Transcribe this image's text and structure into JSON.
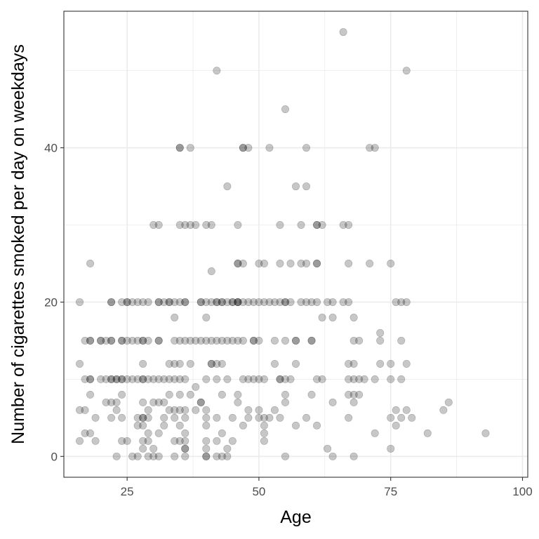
{
  "chart_data": {
    "type": "scatter",
    "title": "",
    "xlabel": "Age",
    "ylabel": "Number of cigarettes smoked per day on weekdays",
    "xlim": [
      13,
      101
    ],
    "ylim": [
      -2.7,
      57.7
    ],
    "x_ticks": [
      25,
      50,
      75,
      100
    ],
    "y_ticks": [
      0,
      20,
      40
    ],
    "x_tick_labels": [
      "25",
      "50",
      "75",
      "100"
    ],
    "y_tick_labels": [
      "0",
      "20",
      "40"
    ],
    "x_minor_gridlines": [
      37.5,
      62.5,
      87.5
    ],
    "y_minor_gridlines": [
      10,
      30,
      50
    ],
    "grid": true,
    "point_color": "#000000",
    "point_opacity": 0.22,
    "panel_border_color": "#333333",
    "grid_color": "#ebebeb",
    "points": [
      [
        66,
        55
      ],
      [
        42,
        50
      ],
      [
        78,
        50
      ],
      [
        55,
        45
      ],
      [
        35,
        40
      ],
      [
        35,
        40
      ],
      [
        37,
        40
      ],
      [
        47,
        40
      ],
      [
        47,
        40
      ],
      [
        48,
        40
      ],
      [
        52,
        40
      ],
      [
        59,
        40
      ],
      [
        71,
        40
      ],
      [
        72,
        40
      ],
      [
        44,
        35
      ],
      [
        57,
        35
      ],
      [
        59,
        35
      ],
      [
        30,
        30
      ],
      [
        31,
        30
      ],
      [
        35,
        30
      ],
      [
        36,
        30
      ],
      [
        37,
        30
      ],
      [
        38,
        30
      ],
      [
        40,
        30
      ],
      [
        41,
        30
      ],
      [
        46,
        30
      ],
      [
        54,
        30
      ],
      [
        58,
        30
      ],
      [
        61,
        30
      ],
      [
        62,
        30
      ],
      [
        61,
        30
      ],
      [
        66,
        30
      ],
      [
        67,
        30
      ],
      [
        18,
        25
      ],
      [
        41,
        24
      ],
      [
        46,
        25
      ],
      [
        46,
        25
      ],
      [
        47,
        25
      ],
      [
        50,
        25
      ],
      [
        51,
        25
      ],
      [
        54,
        25
      ],
      [
        56,
        25
      ],
      [
        58,
        25
      ],
      [
        59,
        25
      ],
      [
        61,
        25
      ],
      [
        61,
        25
      ],
      [
        67,
        25
      ],
      [
        71,
        25
      ],
      [
        75,
        25
      ],
      [
        16,
        20
      ],
      [
        22,
        20
      ],
      [
        22,
        20
      ],
      [
        24,
        20
      ],
      [
        25,
        20
      ],
      [
        25,
        20
      ],
      [
        26,
        20
      ],
      [
        27,
        20
      ],
      [
        28,
        20
      ],
      [
        29,
        20
      ],
      [
        31,
        20
      ],
      [
        31,
        20
      ],
      [
        32,
        20
      ],
      [
        33,
        20
      ],
      [
        33,
        20
      ],
      [
        34,
        20
      ],
      [
        35,
        20
      ],
      [
        36,
        20
      ],
      [
        36,
        20
      ],
      [
        39,
        20
      ],
      [
        39,
        20
      ],
      [
        40,
        20
      ],
      [
        41,
        20
      ],
      [
        42,
        20
      ],
      [
        42,
        20
      ],
      [
        43,
        20
      ],
      [
        43,
        20
      ],
      [
        44,
        20
      ],
      [
        45,
        20
      ],
      [
        45,
        20
      ],
      [
        46,
        20
      ],
      [
        46,
        20
      ],
      [
        46,
        20
      ],
      [
        47,
        20
      ],
      [
        48,
        20
      ],
      [
        49,
        20
      ],
      [
        50,
        20
      ],
      [
        51,
        20
      ],
      [
        52,
        20
      ],
      [
        53,
        20
      ],
      [
        54,
        20
      ],
      [
        55,
        20
      ],
      [
        55,
        20
      ],
      [
        56,
        20
      ],
      [
        58,
        20
      ],
      [
        59,
        20
      ],
      [
        60,
        20
      ],
      [
        61,
        20
      ],
      [
        63,
        20
      ],
      [
        64,
        20
      ],
      [
        66,
        20
      ],
      [
        67,
        20
      ],
      [
        76,
        20
      ],
      [
        77,
        20
      ],
      [
        78,
        20
      ],
      [
        34,
        18
      ],
      [
        40,
        18
      ],
      [
        62,
        18
      ],
      [
        64,
        18
      ],
      [
        68,
        18
      ],
      [
        73,
        16
      ],
      [
        17,
        15
      ],
      [
        18,
        15
      ],
      [
        18,
        15
      ],
      [
        20,
        15
      ],
      [
        20,
        15
      ],
      [
        21,
        15
      ],
      [
        22,
        15
      ],
      [
        22,
        15
      ],
      [
        24,
        15
      ],
      [
        24,
        15
      ],
      [
        25,
        15
      ],
      [
        26,
        15
      ],
      [
        27,
        15
      ],
      [
        28,
        15
      ],
      [
        28,
        15
      ],
      [
        29,
        15
      ],
      [
        31,
        15
      ],
      [
        31,
        15
      ],
      [
        34,
        15
      ],
      [
        35,
        15
      ],
      [
        36,
        15
      ],
      [
        37,
        15
      ],
      [
        38,
        15
      ],
      [
        39,
        15
      ],
      [
        40,
        15
      ],
      [
        41,
        15
      ],
      [
        42,
        15
      ],
      [
        43,
        15
      ],
      [
        44,
        15
      ],
      [
        45,
        15
      ],
      [
        46,
        15
      ],
      [
        47,
        15
      ],
      [
        49,
        15
      ],
      [
        49,
        15
      ],
      [
        50,
        15
      ],
      [
        53,
        15
      ],
      [
        55,
        15
      ],
      [
        57,
        15
      ],
      [
        57,
        15
      ],
      [
        60,
        15
      ],
      [
        60,
        15
      ],
      [
        68,
        15
      ],
      [
        69,
        15
      ],
      [
        73,
        15
      ],
      [
        77,
        15
      ],
      [
        16,
        12
      ],
      [
        28,
        12
      ],
      [
        33,
        12
      ],
      [
        34,
        12
      ],
      [
        35,
        12
      ],
      [
        37,
        12
      ],
      [
        41,
        12
      ],
      [
        41,
        12
      ],
      [
        42,
        12
      ],
      [
        43,
        12
      ],
      [
        53,
        12
      ],
      [
        57,
        12
      ],
      [
        67,
        12
      ],
      [
        68,
        12
      ],
      [
        73,
        12
      ],
      [
        75,
        12
      ],
      [
        78,
        12
      ],
      [
        17,
        10
      ],
      [
        18,
        10
      ],
      [
        18,
        10
      ],
      [
        20,
        10
      ],
      [
        21,
        10
      ],
      [
        22,
        10
      ],
      [
        22,
        10
      ],
      [
        23,
        10
      ],
      [
        23,
        10
      ],
      [
        24,
        10
      ],
      [
        24,
        10
      ],
      [
        25,
        10
      ],
      [
        26,
        10
      ],
      [
        27,
        10
      ],
      [
        28,
        10
      ],
      [
        28,
        10
      ],
      [
        29,
        10
      ],
      [
        30,
        10
      ],
      [
        31,
        10
      ],
      [
        32,
        10
      ],
      [
        33,
        10
      ],
      [
        34,
        10
      ],
      [
        35,
        10
      ],
      [
        36,
        10
      ],
      [
        40,
        10
      ],
      [
        42,
        10
      ],
      [
        44,
        10
      ],
      [
        47,
        10
      ],
      [
        48,
        10
      ],
      [
        49,
        10
      ],
      [
        50,
        10
      ],
      [
        51,
        10
      ],
      [
        54,
        10
      ],
      [
        54,
        10
      ],
      [
        55,
        10
      ],
      [
        56,
        10
      ],
      [
        61,
        10
      ],
      [
        62,
        10
      ],
      [
        67,
        10
      ],
      [
        68,
        10
      ],
      [
        69,
        10
      ],
      [
        70,
        10
      ],
      [
        72,
        10
      ],
      [
        75,
        10
      ],
      [
        77,
        10
      ],
      [
        38,
        9
      ],
      [
        18,
        8
      ],
      [
        24,
        8
      ],
      [
        33,
        8
      ],
      [
        35,
        8
      ],
      [
        37,
        8
      ],
      [
        43,
        8
      ],
      [
        46,
        8
      ],
      [
        55,
        8
      ],
      [
        60,
        8
      ],
      [
        67,
        8
      ],
      [
        68,
        8
      ],
      [
        69,
        8
      ],
      [
        21,
        7
      ],
      [
        22,
        7
      ],
      [
        23,
        7
      ],
      [
        28,
        7
      ],
      [
        30,
        7
      ],
      [
        31,
        7
      ],
      [
        32,
        7
      ],
      [
        39,
        7
      ],
      [
        39,
        7
      ],
      [
        46,
        7
      ],
      [
        55,
        7
      ],
      [
        64,
        7
      ],
      [
        68,
        7
      ],
      [
        86,
        7
      ],
      [
        16,
        6
      ],
      [
        17,
        6
      ],
      [
        23,
        6
      ],
      [
        29,
        6
      ],
      [
        33,
        6
      ],
      [
        34,
        6
      ],
      [
        35,
        6
      ],
      [
        36,
        6
      ],
      [
        38,
        6
      ],
      [
        40,
        6
      ],
      [
        48,
        6
      ],
      [
        50,
        6
      ],
      [
        53,
        6
      ],
      [
        76,
        6
      ],
      [
        78,
        6
      ],
      [
        85,
        6
      ],
      [
        19,
        5
      ],
      [
        22,
        5
      ],
      [
        24,
        5
      ],
      [
        27,
        5
      ],
      [
        28,
        5
      ],
      [
        28,
        5
      ],
      [
        29,
        5
      ],
      [
        32,
        5
      ],
      [
        34,
        5
      ],
      [
        36,
        5
      ],
      [
        40,
        5
      ],
      [
        42,
        5
      ],
      [
        45,
        5
      ],
      [
        48,
        5
      ],
      [
        50,
        5
      ],
      [
        51,
        5
      ],
      [
        52,
        5
      ],
      [
        54,
        5
      ],
      [
        59,
        5
      ],
      [
        67,
        5
      ],
      [
        75,
        5
      ],
      [
        77,
        5
      ],
      [
        79,
        5
      ],
      [
        27,
        4
      ],
      [
        28,
        4
      ],
      [
        32,
        4
      ],
      [
        35,
        4
      ],
      [
        40,
        4
      ],
      [
        47,
        4
      ],
      [
        51,
        4
      ],
      [
        57,
        4
      ],
      [
        61,
        4
      ],
      [
        76,
        4
      ],
      [
        17,
        3
      ],
      [
        18,
        3
      ],
      [
        29,
        3
      ],
      [
        31,
        3
      ],
      [
        36,
        3
      ],
      [
        43,
        3
      ],
      [
        51,
        3
      ],
      [
        72,
        3
      ],
      [
        82,
        3
      ],
      [
        93,
        3
      ],
      [
        16,
        2
      ],
      [
        19,
        2
      ],
      [
        24,
        2
      ],
      [
        25,
        2
      ],
      [
        28,
        2
      ],
      [
        29,
        2
      ],
      [
        34,
        2
      ],
      [
        35,
        2
      ],
      [
        36,
        2
      ],
      [
        40,
        2
      ],
      [
        42,
        2
      ],
      [
        45,
        2
      ],
      [
        51,
        2
      ],
      [
        28,
        1
      ],
      [
        30,
        1
      ],
      [
        36,
        1
      ],
      [
        36,
        1
      ],
      [
        40,
        1
      ],
      [
        44,
        1
      ],
      [
        63,
        1
      ],
      [
        75,
        1
      ],
      [
        23,
        0
      ],
      [
        26,
        0
      ],
      [
        27,
        0
      ],
      [
        29,
        0
      ],
      [
        30,
        0
      ],
      [
        31,
        0
      ],
      [
        34,
        0
      ],
      [
        36,
        0
      ],
      [
        40,
        0
      ],
      [
        40,
        0
      ],
      [
        42,
        0
      ],
      [
        43,
        0
      ],
      [
        44,
        0
      ],
      [
        55,
        0
      ],
      [
        64,
        0
      ],
      [
        68,
        0
      ]
    ]
  }
}
